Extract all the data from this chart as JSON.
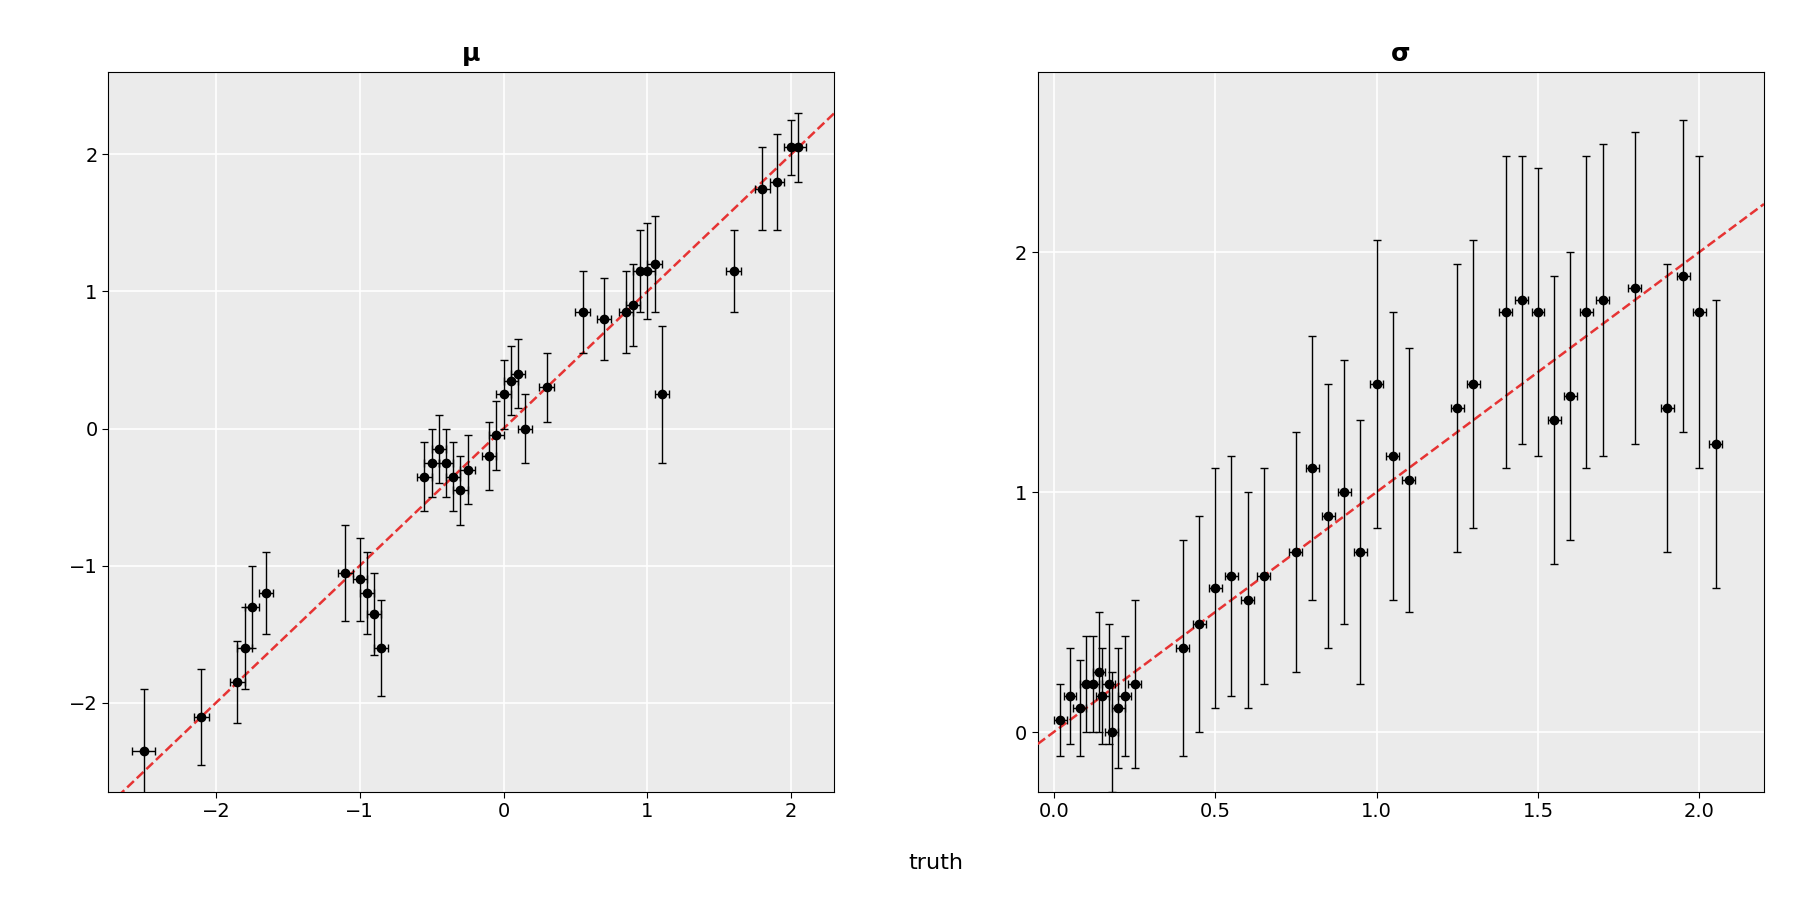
{
  "mu_x": [
    -2.5,
    -2.1,
    -1.85,
    -1.8,
    -1.75,
    -1.65,
    -1.1,
    -1.0,
    -0.95,
    -0.9,
    -0.85,
    -0.55,
    -0.5,
    -0.45,
    -0.4,
    -0.35,
    -0.3,
    -0.25,
    -0.1,
    -0.05,
    0.0,
    0.05,
    0.1,
    0.15,
    0.3,
    0.55,
    0.7,
    0.85,
    0.9,
    0.95,
    1.0,
    1.05,
    1.1,
    1.6,
    1.8,
    1.9,
    2.0,
    2.05
  ],
  "mu_y": [
    -2.35,
    -2.1,
    -1.85,
    -1.6,
    -1.3,
    -1.2,
    -1.05,
    -1.1,
    -1.2,
    -1.35,
    -1.6,
    -0.35,
    -0.25,
    -0.15,
    -0.25,
    -0.35,
    -0.45,
    -0.3,
    -0.2,
    -0.05,
    0.25,
    0.35,
    0.4,
    0.0,
    0.3,
    0.85,
    0.8,
    0.85,
    0.9,
    1.15,
    1.15,
    1.2,
    0.25,
    1.15,
    1.75,
    1.8,
    2.05,
    2.05
  ],
  "mu_yerr": [
    0.45,
    0.35,
    0.3,
    0.3,
    0.3,
    0.3,
    0.35,
    0.3,
    0.3,
    0.3,
    0.35,
    0.25,
    0.25,
    0.25,
    0.25,
    0.25,
    0.25,
    0.25,
    0.25,
    0.25,
    0.25,
    0.25,
    0.25,
    0.25,
    0.25,
    0.3,
    0.3,
    0.3,
    0.3,
    0.3,
    0.35,
    0.35,
    0.5,
    0.3,
    0.3,
    0.35,
    0.2,
    0.25
  ],
  "mu_xerr": [
    0.08,
    0.05,
    0.05,
    0.05,
    0.05,
    0.05,
    0.05,
    0.05,
    0.05,
    0.05,
    0.05,
    0.05,
    0.05,
    0.05,
    0.05,
    0.05,
    0.05,
    0.05,
    0.05,
    0.05,
    0.05,
    0.05,
    0.05,
    0.05,
    0.05,
    0.05,
    0.05,
    0.05,
    0.05,
    0.05,
    0.05,
    0.05,
    0.05,
    0.05,
    0.05,
    0.05,
    0.05,
    0.05
  ],
  "sigma_x": [
    0.02,
    0.05,
    0.08,
    0.1,
    0.12,
    0.14,
    0.15,
    0.17,
    0.18,
    0.2,
    0.22,
    0.25,
    0.4,
    0.45,
    0.5,
    0.55,
    0.6,
    0.65,
    0.75,
    0.8,
    0.85,
    0.9,
    0.95,
    1.0,
    1.05,
    1.1,
    1.25,
    1.3,
    1.4,
    1.45,
    1.5,
    1.55,
    1.6,
    1.65,
    1.7,
    1.8,
    1.9,
    1.95,
    2.0,
    2.05
  ],
  "sigma_y": [
    0.05,
    0.15,
    0.1,
    0.2,
    0.2,
    0.25,
    0.15,
    0.2,
    0.0,
    0.1,
    0.15,
    0.2,
    0.35,
    0.45,
    0.6,
    0.65,
    0.55,
    0.65,
    0.75,
    1.1,
    0.9,
    1.0,
    0.75,
    1.45,
    1.15,
    1.05,
    1.35,
    1.45,
    1.75,
    1.8,
    1.75,
    1.3,
    1.4,
    1.75,
    1.8,
    1.85,
    1.35,
    1.9,
    1.75,
    1.2
  ],
  "sigma_yerr": [
    0.15,
    0.2,
    0.2,
    0.2,
    0.2,
    0.25,
    0.2,
    0.25,
    0.25,
    0.25,
    0.25,
    0.35,
    0.45,
    0.45,
    0.5,
    0.5,
    0.45,
    0.45,
    0.5,
    0.55,
    0.55,
    0.55,
    0.55,
    0.6,
    0.6,
    0.55,
    0.6,
    0.6,
    0.65,
    0.6,
    0.6,
    0.6,
    0.6,
    0.65,
    0.65,
    0.65,
    0.6,
    0.65,
    0.65,
    0.6
  ],
  "sigma_xerr": [
    0.02,
    0.02,
    0.02,
    0.02,
    0.02,
    0.02,
    0.02,
    0.02,
    0.02,
    0.02,
    0.02,
    0.02,
    0.02,
    0.02,
    0.02,
    0.02,
    0.02,
    0.02,
    0.02,
    0.02,
    0.02,
    0.02,
    0.02,
    0.02,
    0.02,
    0.02,
    0.02,
    0.02,
    0.02,
    0.02,
    0.02,
    0.02,
    0.02,
    0.02,
    0.02,
    0.02,
    0.02,
    0.02,
    0.02,
    0.02
  ],
  "mu_xlim": [
    -2.75,
    2.3
  ],
  "mu_ylim": [
    -2.65,
    2.6
  ],
  "sigma_xlim": [
    -0.05,
    2.2
  ],
  "sigma_ylim": [
    -0.25,
    2.75
  ],
  "mu_xticks": [
    -2,
    -1,
    0,
    1,
    2
  ],
  "mu_yticks": [
    -2,
    -1,
    0,
    1,
    2
  ],
  "sigma_xticks": [
    0.0,
    0.5,
    1.0,
    1.5,
    2.0
  ],
  "sigma_yticks": [
    0,
    1,
    2
  ],
  "title_mu": "μ",
  "title_sigma": "σ",
  "xlabel": "truth",
  "bg_color": "#ebebeb",
  "point_color": "black",
  "line_color": "#e63333",
  "ecolor": "black",
  "capsize": 3,
  "markersize": 6,
  "linewidth_dash": 1.8,
  "title_fontsize": 18,
  "label_fontsize": 16,
  "tick_fontsize": 14,
  "grid_color": "white",
  "grid_linewidth": 1.2
}
